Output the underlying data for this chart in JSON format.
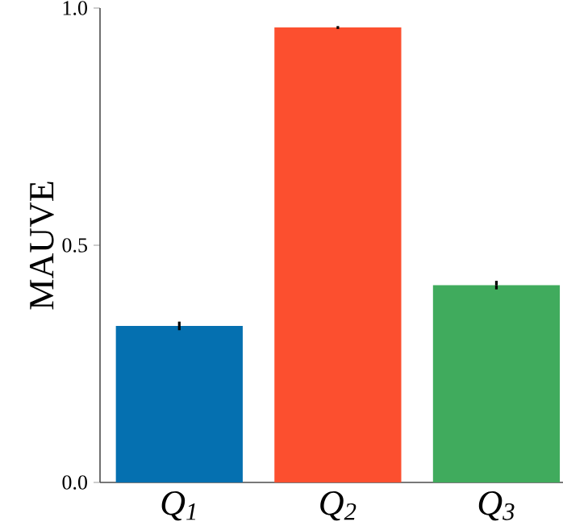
{
  "chart_data": {
    "type": "bar",
    "ylabel": "MAUVE",
    "categories": [
      "Q$_{1}$",
      "Q$_{2}$",
      "Q$_{3}$"
    ],
    "values": [
      0.33,
      0.959,
      0.416
    ],
    "errors": [
      0.009,
      0.003,
      0.009
    ],
    "colors": [
      "#0570b0",
      "#fc4f2f",
      "#40ab5d"
    ],
    "ylim": [
      0,
      1.0
    ],
    "yticks": [
      {
        "value": 0,
        "label": "0.0"
      },
      0.5,
      {
        "value": 1,
        "label": "1.0"
      }
    ]
  }
}
